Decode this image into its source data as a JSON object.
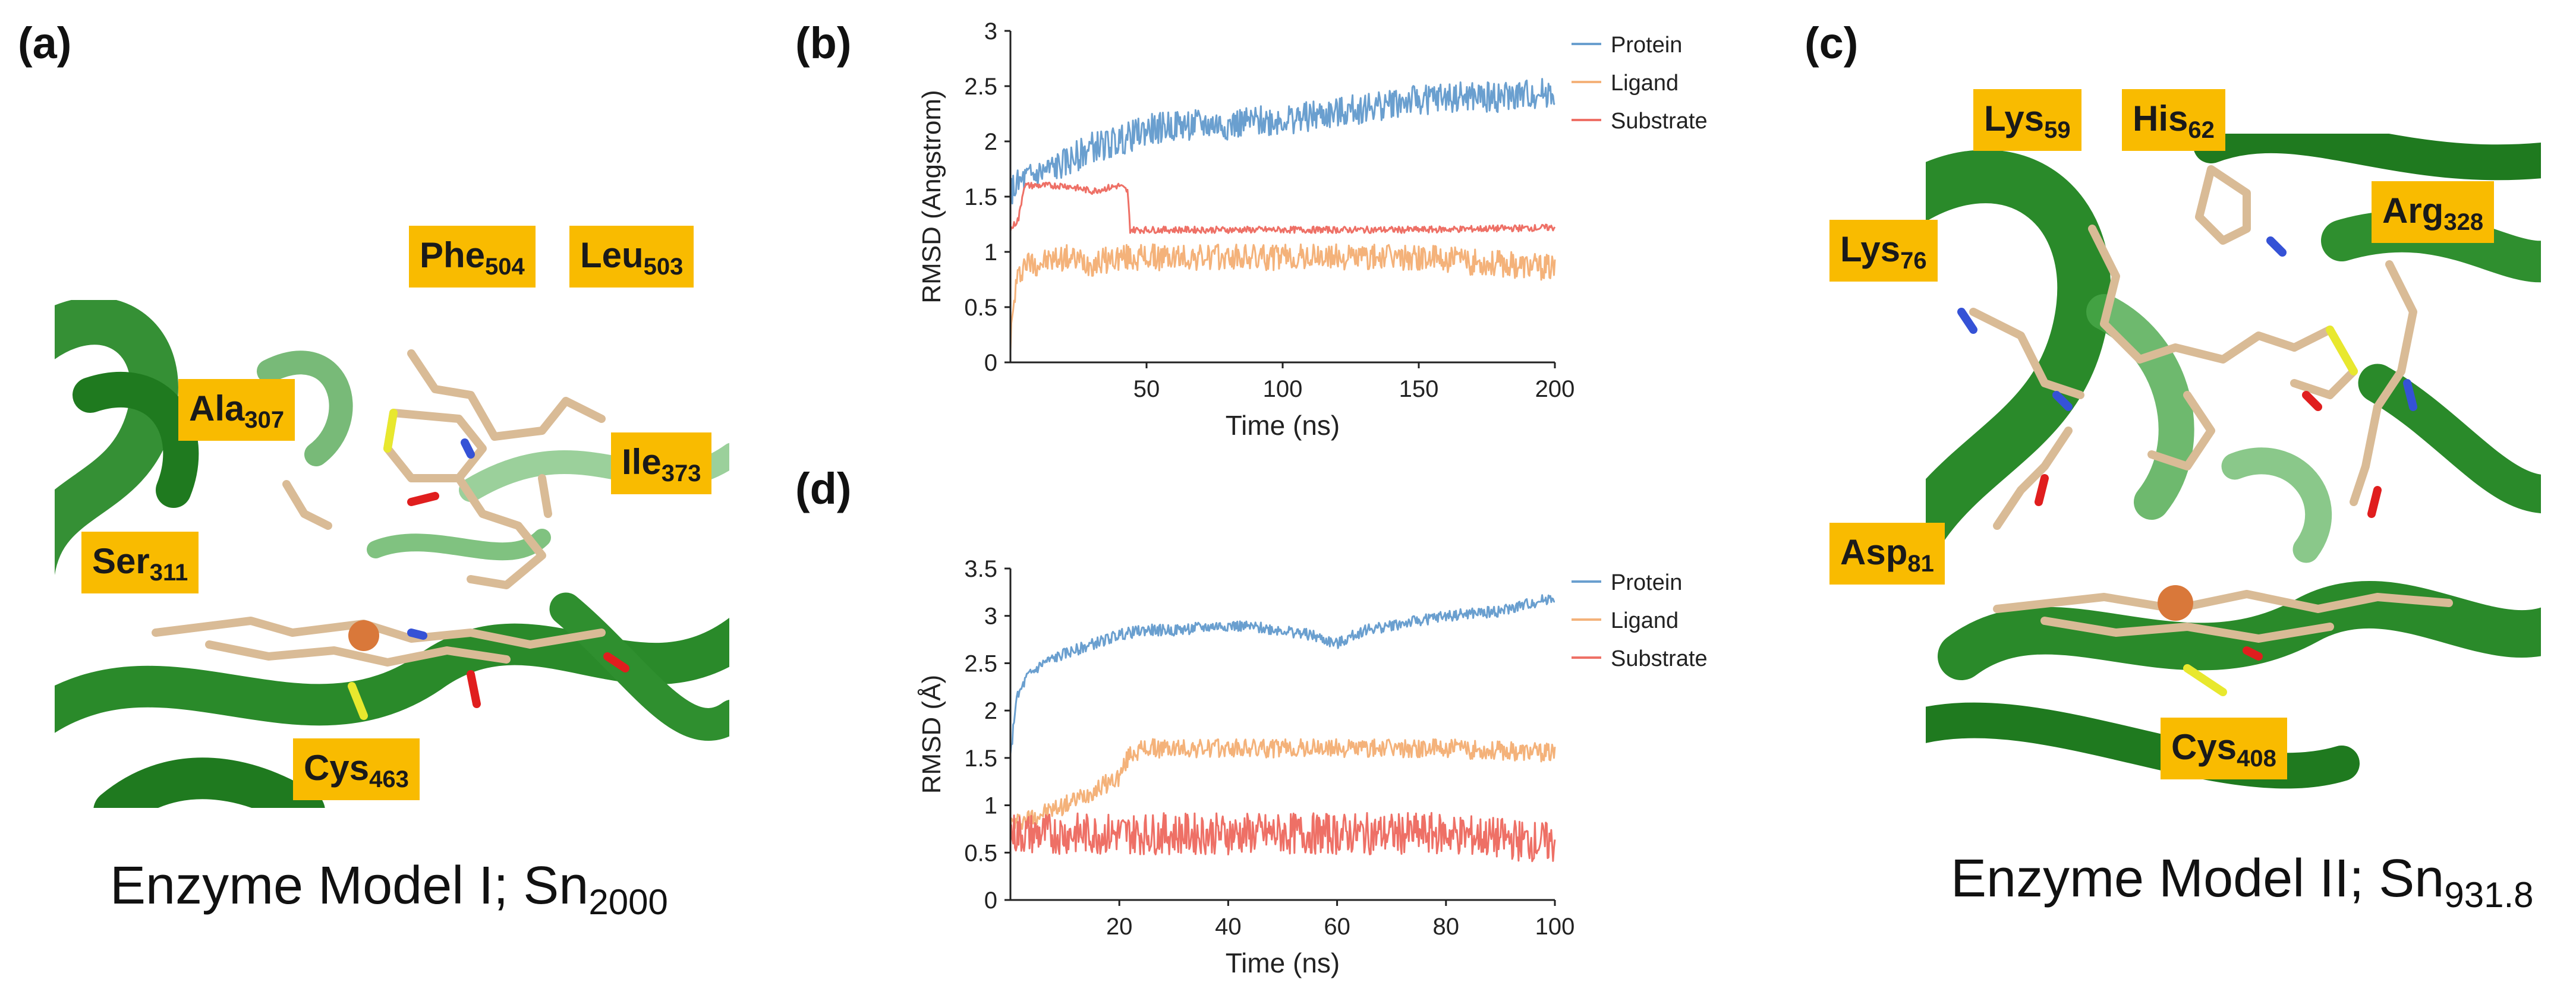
{
  "panels": {
    "a": {
      "letter": "(a)",
      "caption_main": "Enzyme Model I; Sn",
      "caption_sub": "2000",
      "labels": [
        {
          "name": "Phe",
          "sub": "504"
        },
        {
          "name": "Leu",
          "sub": "503"
        },
        {
          "name": "Ala",
          "sub": "307"
        },
        {
          "name": "Ile",
          "sub": "373"
        },
        {
          "name": "Ser",
          "sub": "311"
        },
        {
          "name": "Cys",
          "sub": "463"
        }
      ]
    },
    "b": {
      "letter": "(b)"
    },
    "c": {
      "letter": "(c)",
      "caption_main": "Enzyme Model II; Sn",
      "caption_sub": "931.8",
      "labels": [
        {
          "name": "Lys",
          "sub": "59"
        },
        {
          "name": "His",
          "sub": "62"
        },
        {
          "name": "Arg",
          "sub": "328"
        },
        {
          "name": "Lys",
          "sub": "76"
        },
        {
          "name": "Asp",
          "sub": "81"
        },
        {
          "name": "Cys",
          "sub": "408"
        }
      ]
    },
    "d": {
      "letter": "(d)"
    }
  },
  "colors": {
    "protein": "#6a9fcf",
    "ligand": "#f4b27a",
    "substrate": "#ee7066",
    "label_bg": "#f9bb00",
    "ribbon": "#2a8a2a"
  },
  "chart_data": [
    {
      "id": "b",
      "type": "line",
      "xlabel": "Time (ns)",
      "ylabel": "RMSD (Angstrom)",
      "xlim": [
        0,
        200
      ],
      "ylim": [
        0,
        3
      ],
      "xticks": [
        50,
        100,
        150,
        200
      ],
      "xtick_labels": [
        "50",
        "100",
        "150",
        "200"
      ],
      "yticks": [
        0,
        0.5,
        1,
        1.5,
        2,
        2.5,
        3
      ],
      "ytick_labels": [
        "0",
        "0.5",
        "1",
        "1.5",
        "2",
        "2.5",
        "3"
      ],
      "legend": "top-right",
      "series": [
        {
          "name": "Protein",
          "color": "#6a9fcf",
          "x": [
            0,
            5,
            10,
            20,
            30,
            40,
            50,
            60,
            80,
            100,
            120,
            140,
            160,
            180,
            200
          ],
          "y": [
            1.55,
            1.65,
            1.7,
            1.8,
            1.95,
            2.0,
            2.1,
            2.15,
            2.15,
            2.2,
            2.25,
            2.35,
            2.4,
            2.4,
            2.45
          ],
          "noise": 0.14
        },
        {
          "name": "Ligand",
          "color": "#f4b27a",
          "x": [
            0,
            2,
            5,
            10,
            20,
            30,
            40,
            45,
            60,
            100,
            150,
            200
          ],
          "y": [
            0.2,
            0.7,
            0.9,
            0.9,
            0.95,
            0.9,
            0.95,
            0.95,
            0.95,
            0.95,
            0.95,
            0.85
          ],
          "noise": 0.12
        },
        {
          "name": "Substrate",
          "color": "#ee7066",
          "x": [
            0,
            3,
            5,
            10,
            20,
            30,
            40,
            43,
            44,
            60,
            100,
            150,
            200
          ],
          "y": [
            1.2,
            1.3,
            1.6,
            1.6,
            1.6,
            1.55,
            1.6,
            1.55,
            1.2,
            1.2,
            1.2,
            1.2,
            1.22
          ],
          "noise": 0.03
        }
      ]
    },
    {
      "id": "d",
      "type": "line",
      "xlabel": "Time (ns)",
      "ylabel": "RMSD (Å)",
      "xlim": [
        0,
        100
      ],
      "ylim": [
        0,
        3.5
      ],
      "xticks": [
        20,
        40,
        60,
        80,
        100
      ],
      "xtick_labels": [
        "20",
        "40",
        "60",
        "80",
        "100"
      ],
      "yticks": [
        0,
        0.5,
        1,
        1.5,
        2,
        2.5,
        3,
        3.5
      ],
      "ytick_labels": [
        "0",
        "0.5",
        "1",
        "1.5",
        "2",
        "2.5",
        "3",
        "3.5"
      ],
      "legend": "top-right",
      "series": [
        {
          "name": "Protein",
          "color": "#6a9fcf",
          "x": [
            0,
            1,
            3,
            6,
            10,
            15,
            20,
            25,
            30,
            40,
            50,
            55,
            60,
            65,
            70,
            80,
            90,
            100
          ],
          "y": [
            1.5,
            2.1,
            2.35,
            2.5,
            2.6,
            2.7,
            2.8,
            2.85,
            2.85,
            2.9,
            2.85,
            2.8,
            2.7,
            2.85,
            2.9,
            3.0,
            3.05,
            3.2
          ],
          "noise": 0.06
        },
        {
          "name": "Ligand",
          "color": "#f4b27a",
          "x": [
            0,
            5,
            10,
            15,
            20,
            22,
            25,
            40,
            60,
            80,
            100
          ],
          "y": [
            0.8,
            0.9,
            1.0,
            1.15,
            1.3,
            1.55,
            1.6,
            1.6,
            1.6,
            1.6,
            1.55
          ],
          "noise": 0.1
        },
        {
          "name": "Substrate",
          "color": "#ee7066",
          "x": [
            0,
            20,
            40,
            60,
            80,
            100
          ],
          "y": [
            0.7,
            0.7,
            0.7,
            0.7,
            0.7,
            0.6
          ],
          "noise": 0.22
        }
      ]
    }
  ]
}
